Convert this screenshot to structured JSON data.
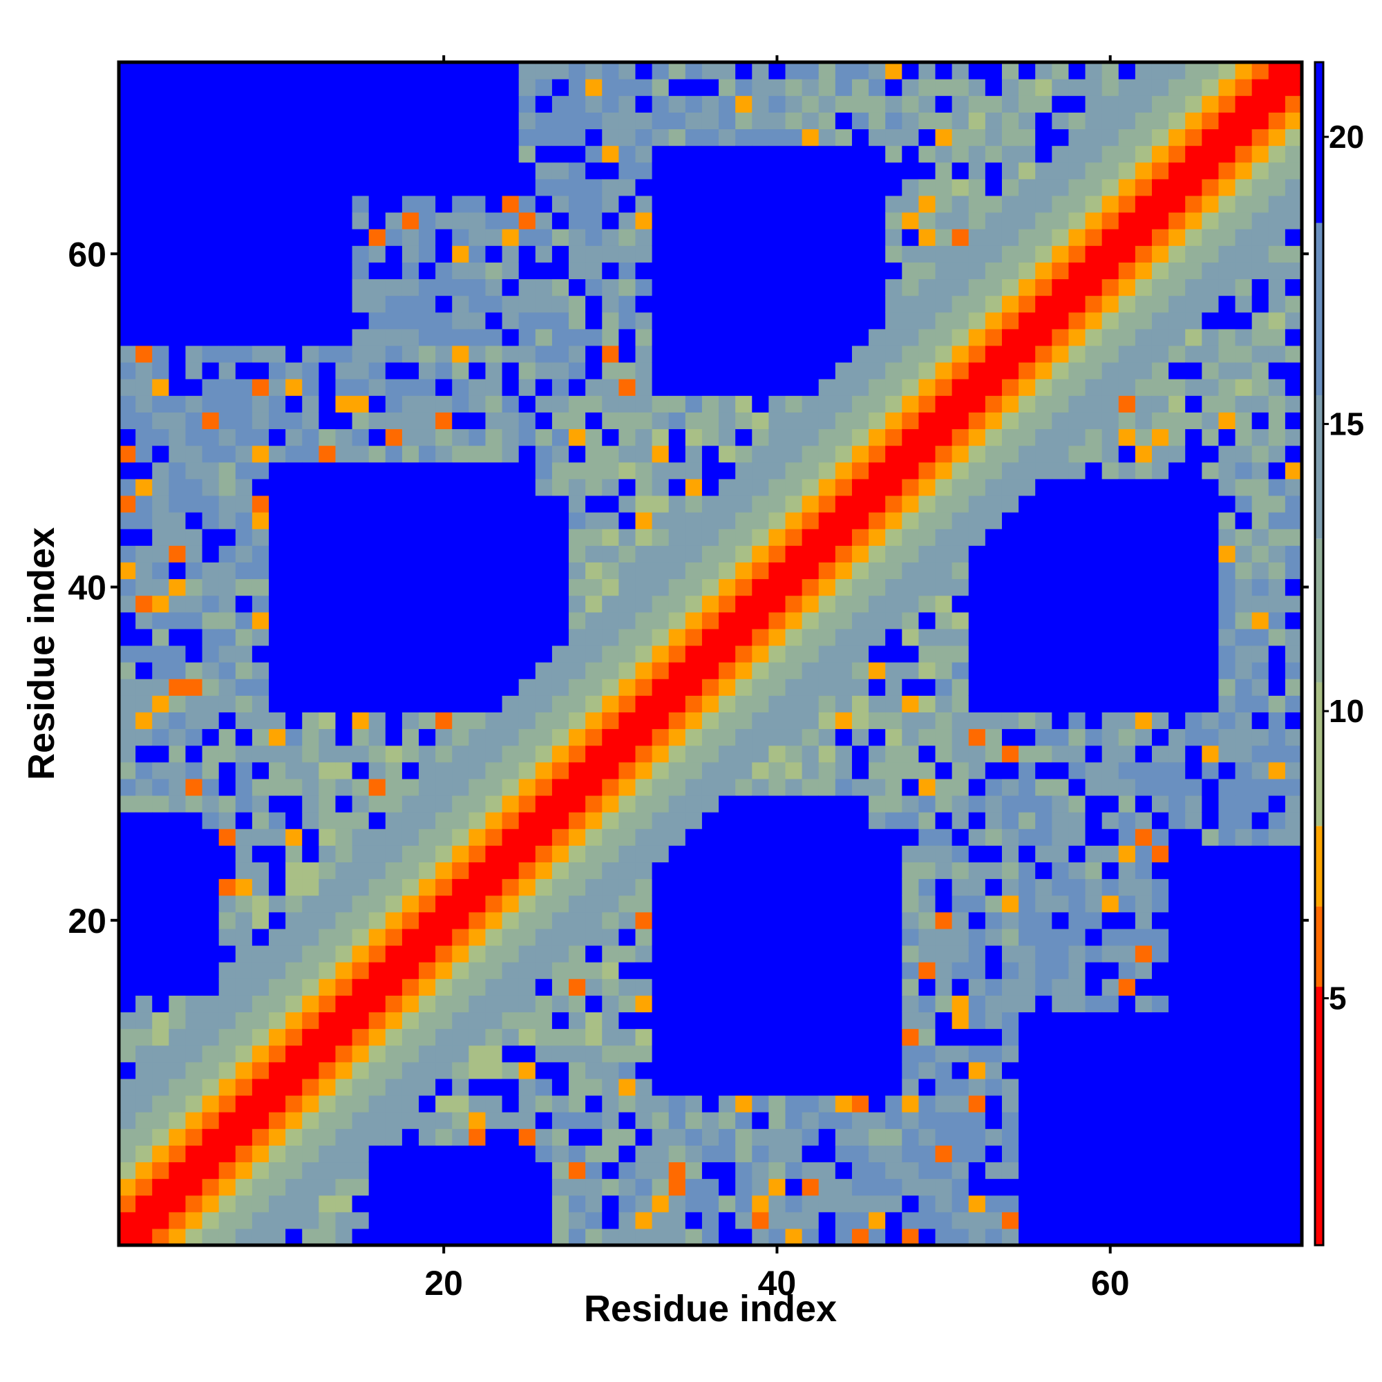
{
  "chart_data": {
    "type": "heatmap",
    "title": "",
    "xlabel": "Residue index",
    "ylabel": "Residue index",
    "n_residues": 71,
    "xlim": [
      0.5,
      71.5
    ],
    "ylim": [
      0.5,
      71.5
    ],
    "x_ticks": [
      20,
      40,
      60
    ],
    "y_ticks": [
      20,
      40,
      60
    ],
    "colorbar": {
      "range": [
        0.7,
        21.3
      ],
      "ticks": [
        5,
        10,
        15,
        20
      ],
      "segments": [
        {
          "from": 0.7,
          "to": 5.2,
          "color": "#ff0000"
        },
        {
          "from": 5.2,
          "to": 6.6,
          "color": "#ff6a00"
        },
        {
          "from": 6.6,
          "to": 8.0,
          "color": "#ffa500"
        },
        {
          "from": 8.0,
          "to": 10.5,
          "color": "#a9bf86"
        },
        {
          "from": 10.5,
          "to": 13.0,
          "color": "#93b09a"
        },
        {
          "from": 13.0,
          "to": 15.5,
          "color": "#7f9fb0"
        },
        {
          "from": 15.5,
          "to": 18.5,
          "color": "#6a90c0"
        },
        {
          "from": 18.5,
          "to": 21.3,
          "color": "#0000ff"
        }
      ]
    },
    "diagonal_bands": [
      {
        "max_offset": 1,
        "value": 3.8
      },
      {
        "max_offset": 2,
        "value": 5.6
      },
      {
        "max_offset": 3,
        "value": 7.0
      },
      {
        "max_offset": 4,
        "value": 9.5
      },
      {
        "max_offset": 6,
        "value": 11.5
      },
      {
        "max_offset": 9,
        "value": 14.0
      }
    ],
    "blue_regions": [
      {
        "x": [
          1,
          14
        ],
        "y": [
          55,
          71
        ]
      },
      {
        "x": [
          15,
          24
        ],
        "y": [
          64,
          71
        ]
      },
      {
        "x": [
          33,
          46
        ],
        "y": [
          52,
          66
        ]
      },
      {
        "x": [
          15,
          27
        ],
        "y": [
          36,
          45
        ]
      },
      {
        "x": [
          18,
          22
        ],
        "y": [
          33,
          36
        ]
      },
      {
        "x": [
          55,
          66
        ],
        "y": [
          34,
          46
        ]
      },
      {
        "x": [
          33,
          47
        ],
        "y": [
          10,
          25
        ]
      },
      {
        "x": [
          55,
          71
        ],
        "y": [
          1,
          14
        ]
      },
      {
        "x": [
          16,
          25
        ],
        "y": [
          1,
          6
        ]
      },
      {
        "x": [
          1,
          5
        ],
        "y": [
          16,
          26
        ]
      },
      {
        "x": [
          64,
          71
        ],
        "y": [
          14,
          24
        ]
      }
    ],
    "grid": false,
    "legend": "colorbar-right"
  }
}
